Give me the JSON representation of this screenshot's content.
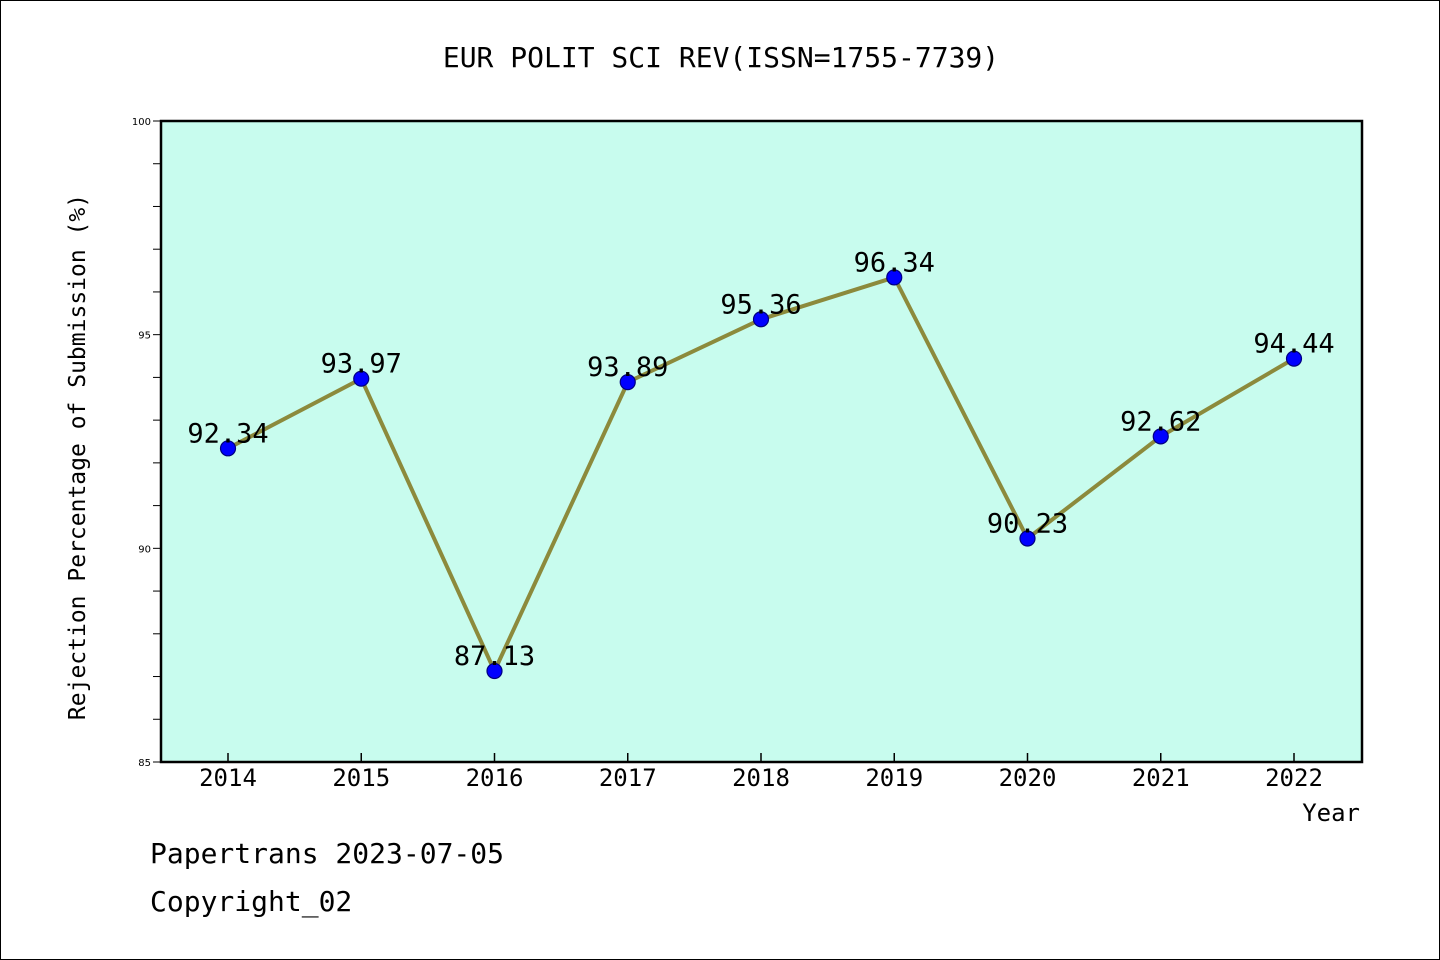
{
  "colors": {
    "plot_background": "#c8fcee",
    "line": "#8c8a3c",
    "marker_fill": "#0000ff",
    "marker_stroke": "#000080",
    "axis": "#000000"
  },
  "chart_data": {
    "type": "line",
    "title": "EUR POLIT SCI REV(ISSN=1755-7739)",
    "xlabel": "Year",
    "ylabel": "Rejection Percentage of Submission (%)",
    "categories": [
      "2014",
      "2015",
      "2016",
      "2017",
      "2018",
      "2019",
      "2020",
      "2021",
      "2022"
    ],
    "series": [
      {
        "values": [
          92.34,
          93.97,
          87.13,
          93.89,
          95.36,
          96.34,
          90.23,
          92.62,
          94.44
        ]
      }
    ],
    "data_labels": [
      "92.34",
      "93.97",
      "87.13",
      "93.89",
      "95.36",
      "96.34",
      "90.23",
      "92.62",
      "94.44"
    ],
    "ylim": [
      85,
      100
    ],
    "y_ticks": [
      85,
      90,
      95,
      100
    ],
    "y_minor_step": 1,
    "grid": false,
    "legend": "none"
  },
  "footer": {
    "source": "Papertrans 2023-07-05",
    "copyright": "Copyright_02"
  }
}
